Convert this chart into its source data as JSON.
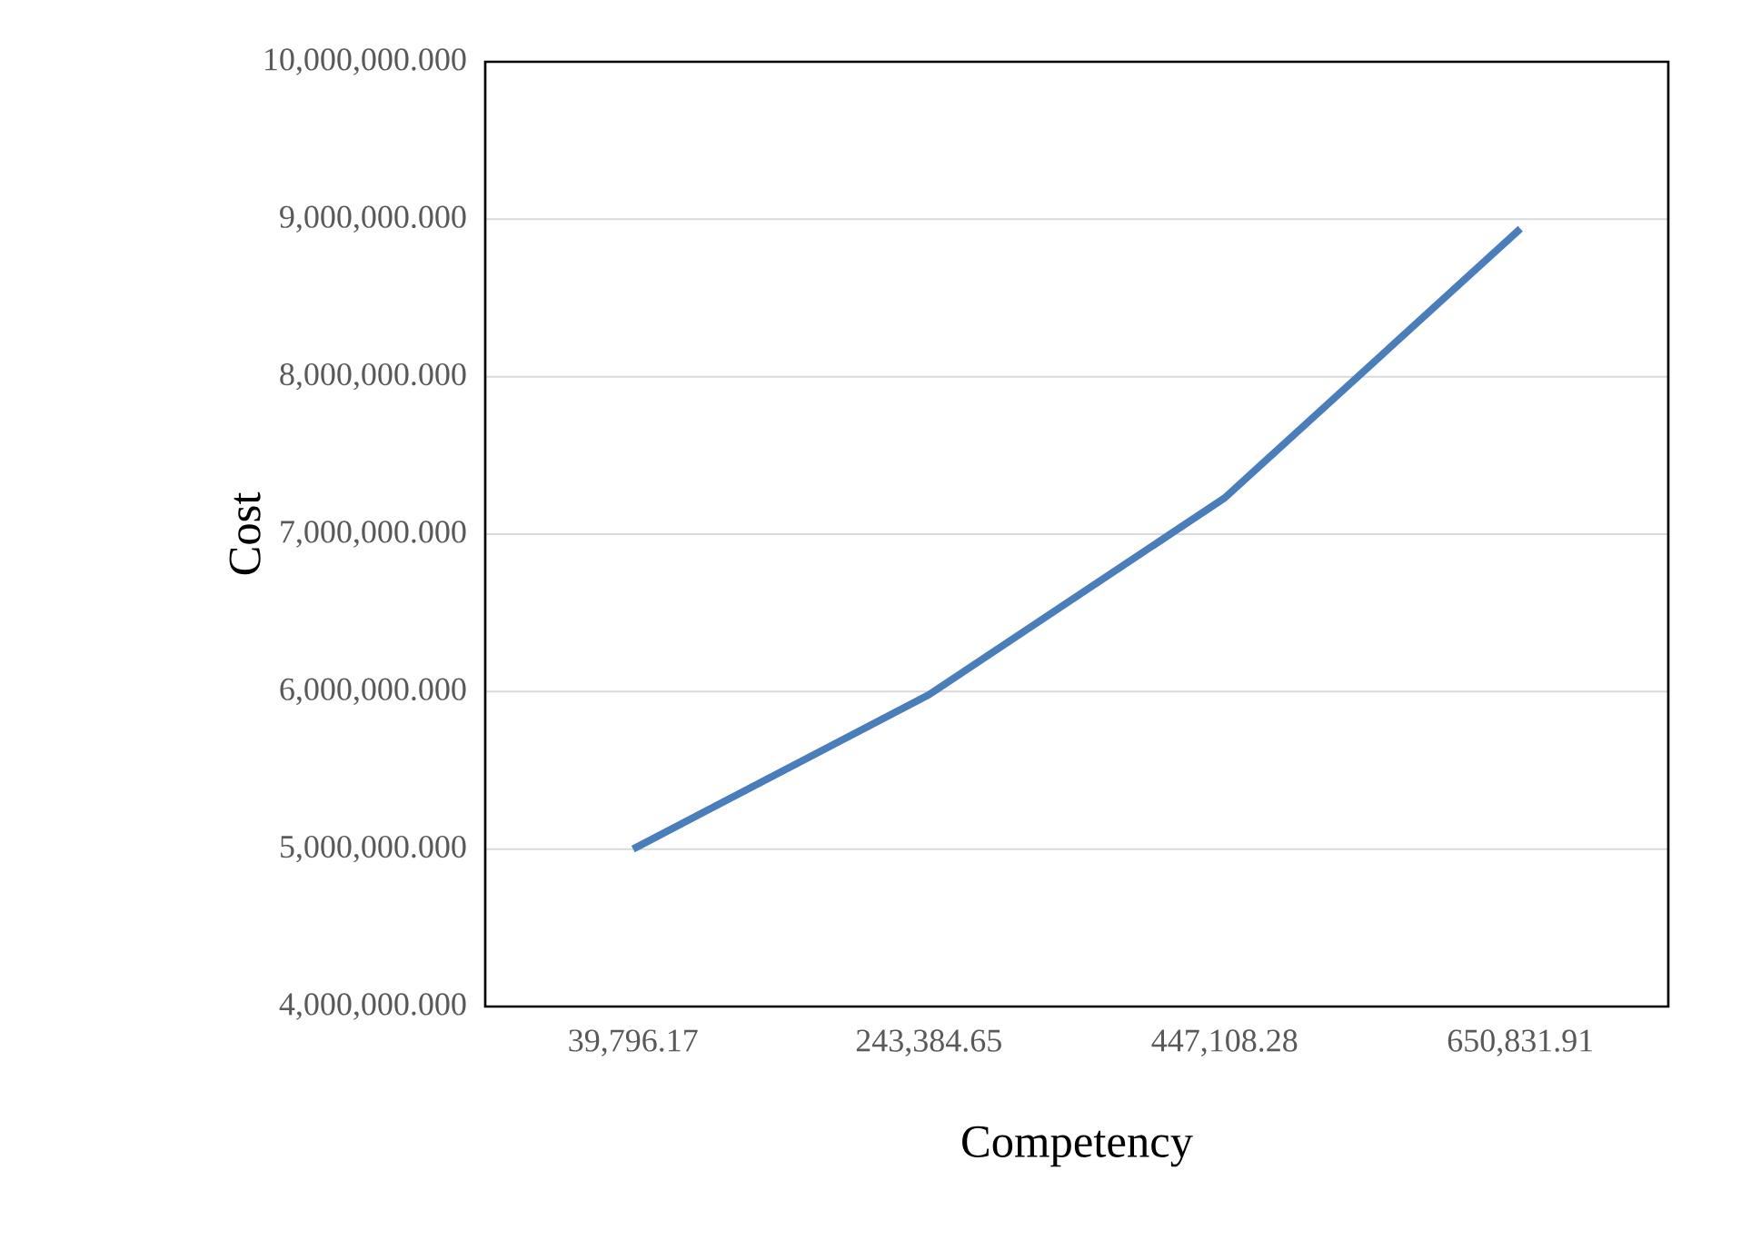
{
  "chart_data": {
    "type": "line",
    "xlabel": "Competency",
    "ylabel": "Cost",
    "categories": [
      "39,796.17",
      "243,384.65",
      "447,108.28",
      "650,831.91"
    ],
    "series": [
      {
        "color": "#4a7ebb",
        "values": [
          5000000,
          5980000,
          7230000,
          8940000
        ]
      }
    ],
    "ylim": [
      4000000,
      10000000
    ],
    "yticks": [
      {
        "value": 4000000,
        "label": "4,000,000.000"
      },
      {
        "value": 5000000,
        "label": "5,000,000.000"
      },
      {
        "value": 6000000,
        "label": "6,000,000.000"
      },
      {
        "value": 7000000,
        "label": "7,000,000.000"
      },
      {
        "value": 8000000,
        "label": "8,000,000.000"
      },
      {
        "value": 9000000,
        "label": "9,000,000.000"
      },
      {
        "value": 10000000,
        "label": "10,000,000.000"
      }
    ],
    "grid": "y",
    "legend": false,
    "marker": "none",
    "line_style": "solid"
  }
}
